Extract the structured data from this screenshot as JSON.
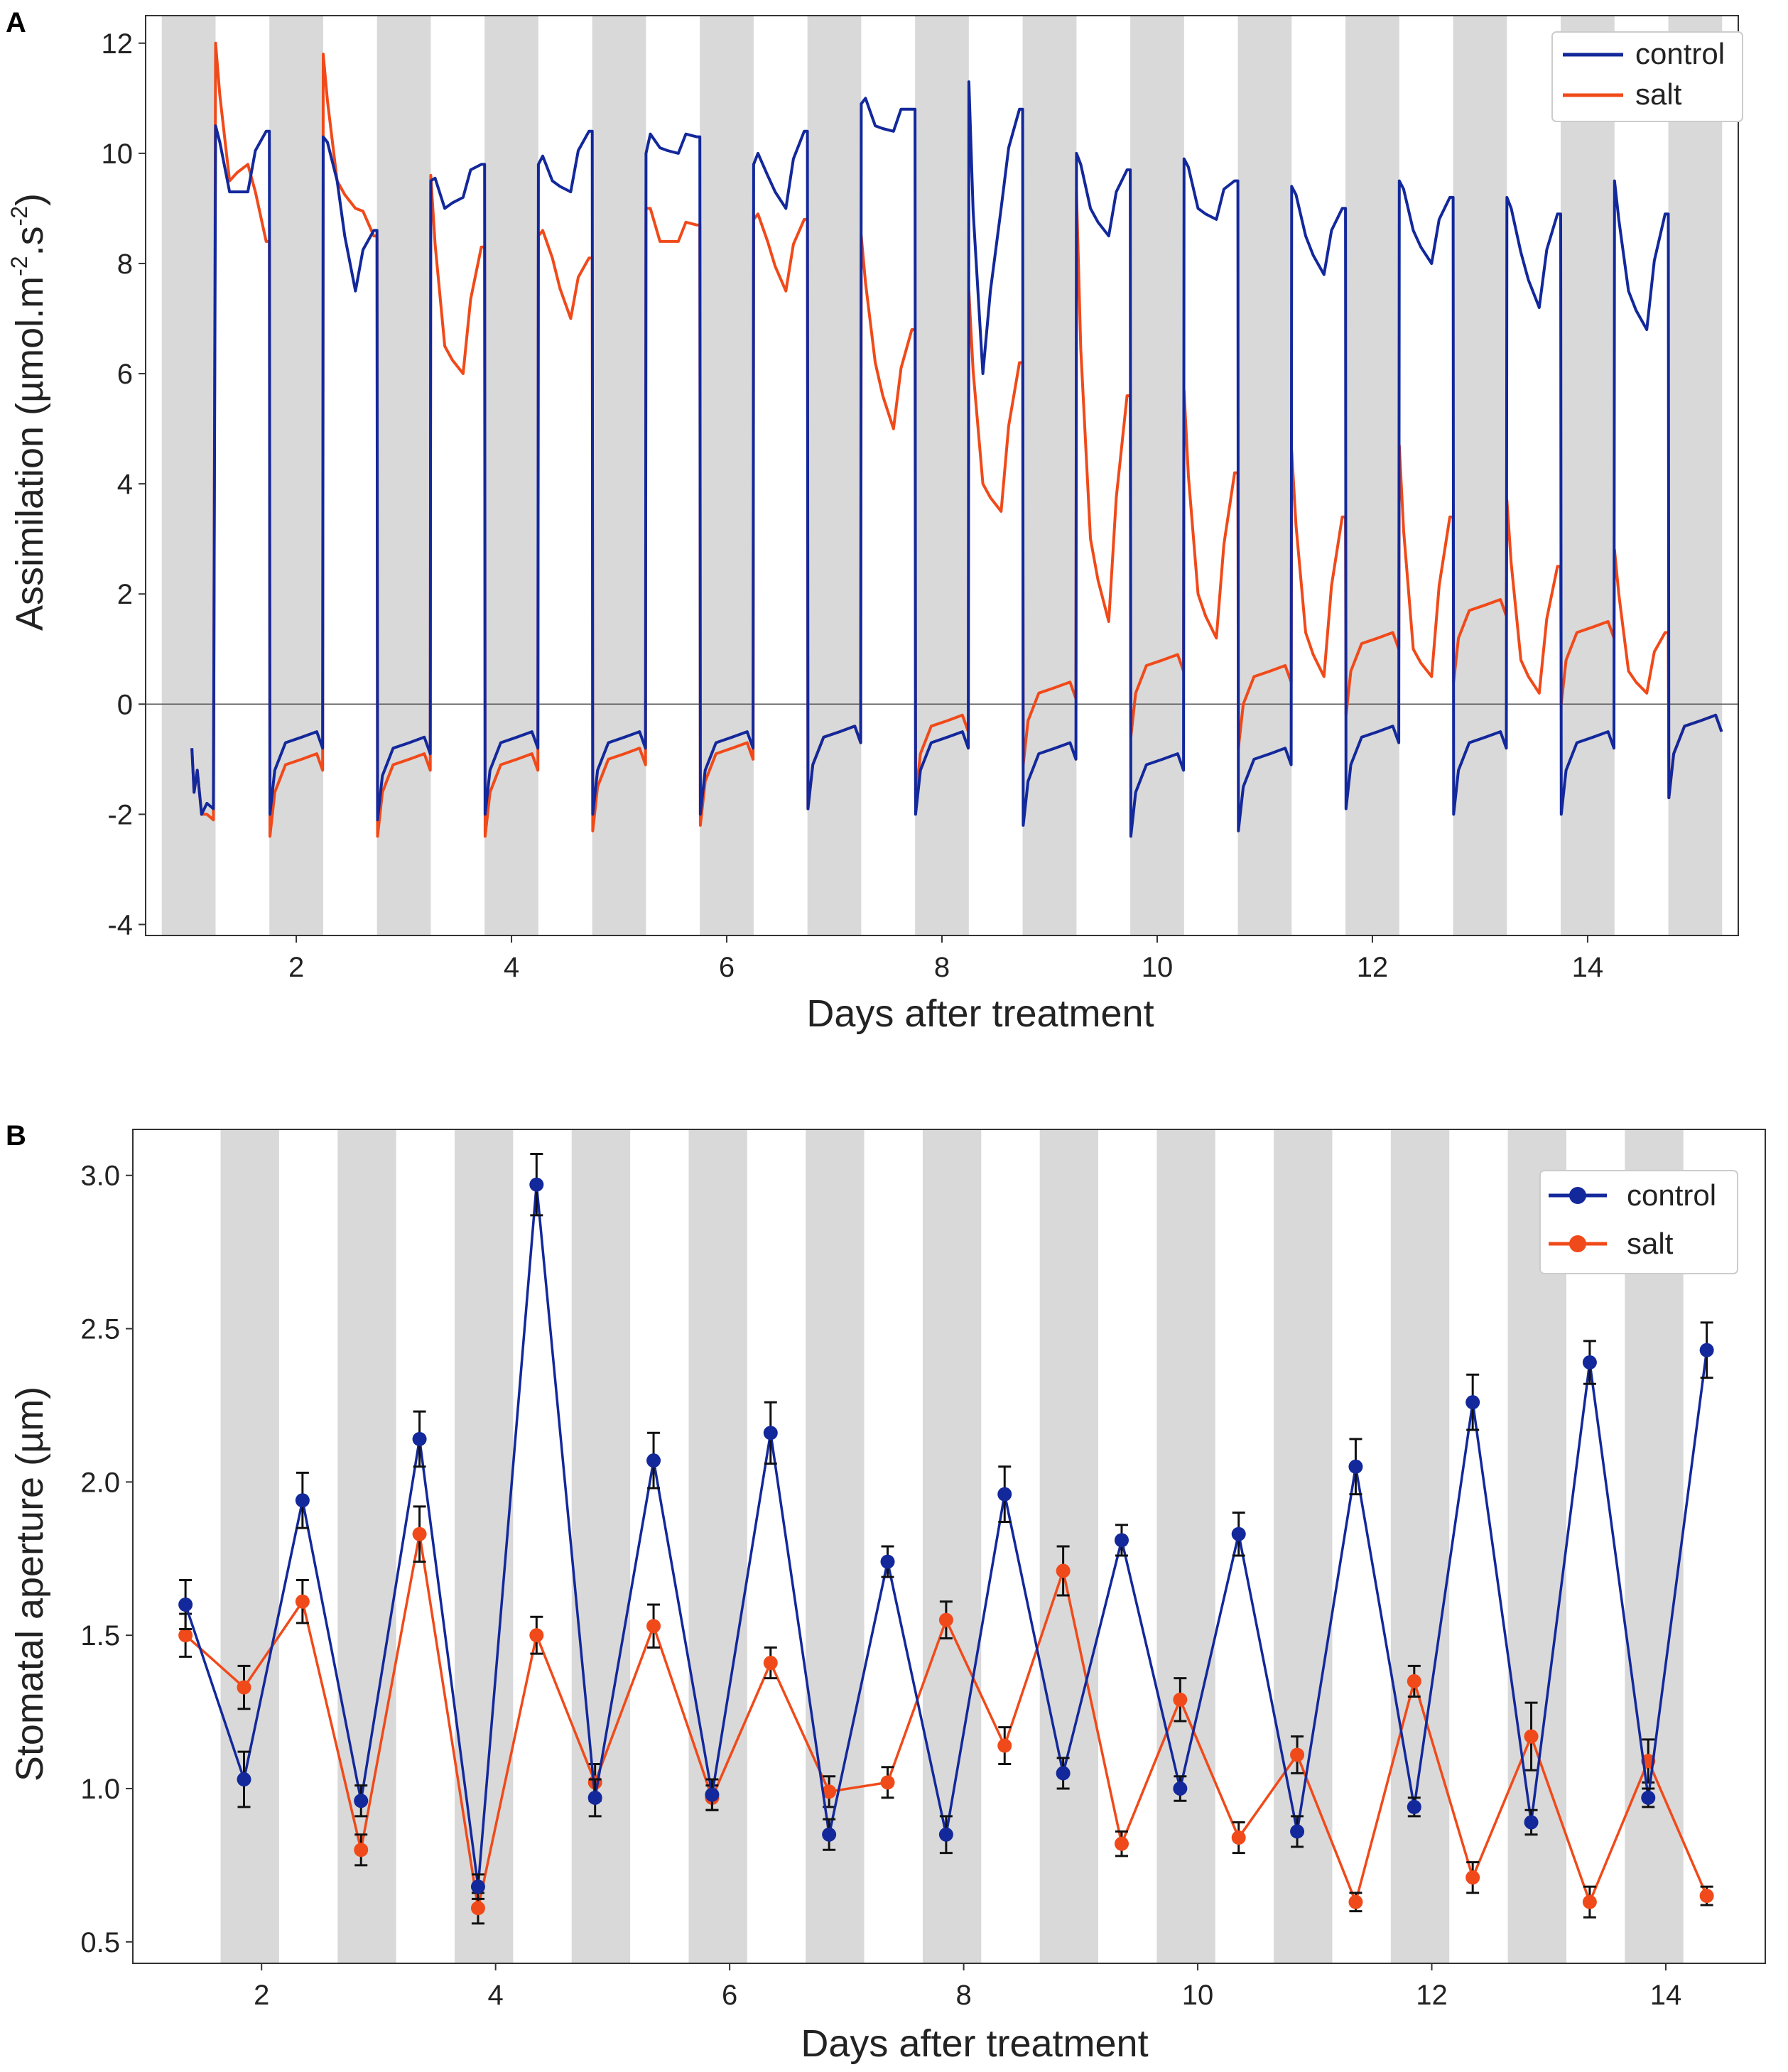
{
  "colors": {
    "control": "#13289b",
    "salt": "#f04a1a",
    "night": "#d9d9d9",
    "zero_line": "#555555"
  },
  "chart_data": [
    {
      "panel_label": "A",
      "type": "line",
      "xlabel": "Days after treatment",
      "ylabel_main": "Assimilation (µmol.m",
      "ylabel_sup1": "-2",
      "ylabel_mid": ".s",
      "ylabel_sup2": "-2",
      "ylabel_end": ")",
      "xlim": [
        0.6,
        15.4
      ],
      "ylim": [
        -4.2,
        12.5
      ],
      "xticks": [
        2,
        4,
        6,
        8,
        10,
        12,
        14
      ],
      "yticks": [
        -4,
        -2,
        0,
        2,
        4,
        6,
        8,
        10,
        12
      ],
      "night_start": 0.75,
      "night_len": 0.5,
      "night_count": 15,
      "legend": [
        "control",
        "salt"
      ],
      "day_levels": [
        {
          "day": 1,
          "control": [
            10.5,
            9.3,
            9.3,
            10.4
          ],
          "salt": [
            12.0,
            9.5,
            9.8,
            8.4
          ]
        },
        {
          "day": 2,
          "control": [
            10.3,
            9.5,
            7.5,
            8.6
          ],
          "salt": [
            11.8,
            9.5,
            9.0,
            8.5
          ]
        },
        {
          "day": 3,
          "control": [
            9.5,
            9.0,
            9.2,
            9.8
          ],
          "salt": [
            9.6,
            6.5,
            6.0,
            8.3
          ]
        },
        {
          "day": 4,
          "control": [
            9.8,
            9.5,
            9.3,
            10.4
          ],
          "salt": [
            8.5,
            8.1,
            7.0,
            8.1
          ]
        },
        {
          "day": 5,
          "control": [
            10.0,
            10.1,
            10.0,
            10.3
          ],
          "salt": [
            9.0,
            8.4,
            8.4,
            8.7
          ]
        },
        {
          "day": 6,
          "control": [
            9.8,
            9.6,
            9.0,
            10.4
          ],
          "salt": [
            8.8,
            8.4,
            7.5,
            8.8
          ]
        },
        {
          "day": 7,
          "control": [
            10.9,
            10.5,
            10.4,
            10.8
          ],
          "salt": [
            8.5,
            6.2,
            5.0,
            6.8
          ]
        },
        {
          "day": 8,
          "control": [
            11.3,
            6.0,
            9.0,
            10.8
          ],
          "salt": [
            7.5,
            4.0,
            3.5,
            6.2
          ]
        },
        {
          "day": 9,
          "control": [
            10.0,
            9.0,
            8.5,
            9.7
          ],
          "salt": [
            9.3,
            3.0,
            1.5,
            5.6
          ]
        },
        {
          "day": 10,
          "control": [
            9.9,
            9.0,
            8.8,
            9.5
          ],
          "salt": [
            5.7,
            2.0,
            1.2,
            4.2
          ]
        },
        {
          "day": 11,
          "control": [
            9.4,
            8.5,
            7.8,
            9.0
          ],
          "salt": [
            4.6,
            1.3,
            0.5,
            3.4
          ]
        },
        {
          "day": 12,
          "control": [
            9.5,
            8.6,
            8.0,
            9.2
          ],
          "salt": [
            4.7,
            1.0,
            0.5,
            3.4
          ]
        },
        {
          "day": 13,
          "control": [
            9.2,
            8.2,
            7.2,
            8.9
          ],
          "salt": [
            3.7,
            0.8,
            0.2,
            2.5
          ]
        },
        {
          "day": 14,
          "control": [
            9.5,
            7.5,
            6.8,
            8.9
          ],
          "salt": [
            2.8,
            0.6,
            0.2,
            1.3
          ]
        }
      ],
      "night_levels": [
        {
          "night": 1,
          "control": -1.8,
          "salt": -2.0
        },
        {
          "night": 2,
          "control": -0.6,
          "salt": -1.0
        },
        {
          "night": 3,
          "control": -0.7,
          "salt": -1.0
        },
        {
          "night": 4,
          "control": -0.6,
          "salt": -1.0
        },
        {
          "night": 5,
          "control": -0.6,
          "salt": -0.9
        },
        {
          "night": 6,
          "control": -0.6,
          "salt": -0.8
        },
        {
          "night": 7,
          "control": -0.5,
          "salt": -0.5
        },
        {
          "night": 8,
          "control": -0.6,
          "salt": -0.3
        },
        {
          "night": 9,
          "control": -0.8,
          "salt": 0.3
        },
        {
          "night": 10,
          "control": -1.0,
          "salt": 0.8
        },
        {
          "night": 11,
          "control": -0.9,
          "salt": 0.6
        },
        {
          "night": 12,
          "control": -0.5,
          "salt": 1.2
        },
        {
          "night": 13,
          "control": -0.6,
          "salt": 1.8
        },
        {
          "night": 14,
          "control": -0.6,
          "salt": 1.4
        },
        {
          "night": 15,
          "control": -0.3,
          "salt": -0.3
        }
      ]
    },
    {
      "panel_label": "B",
      "type": "line",
      "xlabel": "Days after treatment",
      "ylabel": "Stomatal aperture (µm)",
      "xlim": [
        0.9,
        14.85
      ],
      "ylim": [
        0.43,
        3.15
      ],
      "xticks": [
        2,
        4,
        6,
        8,
        10,
        12,
        14
      ],
      "yticks": [
        0.5,
        1.0,
        1.5,
        2.0,
        2.5,
        3.0
      ],
      "ytick_labels": [
        "0.5",
        "1.0",
        "1.5",
        "2.0",
        "2.5",
        "3.0"
      ],
      "night_start": 1.65,
      "night_len": 0.5,
      "night_count": 13,
      "legend": [
        "control",
        "salt"
      ],
      "x": [
        1.35,
        1.85,
        2.35,
        2.85,
        3.35,
        3.85,
        4.35,
        4.85,
        5.35,
        5.85,
        6.35,
        6.85,
        7.35,
        7.85,
        8.35,
        8.85,
        9.35,
        9.85,
        10.35,
        10.85,
        11.35,
        11.85,
        12.35,
        12.85,
        13.35,
        13.85,
        14.35
      ],
      "series": [
        {
          "name": "control",
          "values": [
            1.6,
            1.03,
            1.94,
            0.96,
            2.14,
            0.68,
            2.97,
            0.97,
            2.07,
            0.98,
            2.16,
            0.85,
            1.74,
            0.85,
            1.96,
            1.05,
            1.81,
            1.0,
            1.83,
            0.86,
            2.05,
            0.94,
            2.26,
            0.89,
            2.39,
            0.97,
            2.43
          ],
          "errors": [
            0.08,
            0.09,
            0.09,
            0.05,
            0.09,
            0.04,
            0.1,
            0.06,
            0.09,
            0.05,
            0.1,
            0.05,
            0.05,
            0.06,
            0.09,
            0.05,
            0.05,
            0.04,
            0.07,
            0.05,
            0.09,
            0.03,
            0.09,
            0.04,
            0.07,
            0.03,
            0.09
          ]
        },
        {
          "name": "salt",
          "values": [
            1.5,
            1.33,
            1.61,
            0.8,
            1.83,
            0.61,
            1.5,
            1.02,
            1.53,
            0.97,
            1.41,
            0.99,
            1.02,
            1.55,
            1.14,
            1.71,
            0.82,
            1.29,
            0.84,
            1.11,
            0.63,
            1.35,
            0.71,
            1.17,
            0.63,
            1.09,
            0.65
          ]
        }
      ],
      "salt_errors": [
        0.07,
        0.07,
        0.07,
        0.05,
        0.09,
        0.05,
        0.06,
        0.06,
        0.07,
        0.04,
        0.05,
        0.05,
        0.05,
        0.06,
        0.06,
        0.08,
        0.04,
        0.07,
        0.05,
        0.06,
        0.03,
        0.05,
        0.05,
        0.11,
        0.05,
        0.07,
        0.03
      ]
    }
  ]
}
